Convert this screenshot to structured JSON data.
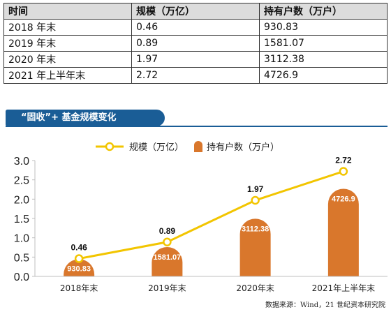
{
  "table": {
    "headers": [
      "时间",
      "规模（万亿）",
      "持有户数（万户）"
    ],
    "rows": [
      [
        "2018 年末",
        "0.46",
        "930.83"
      ],
      [
        "2019 年末",
        "0.89",
        "1581.07"
      ],
      [
        "2020 年末",
        "1.97",
        "3112.38"
      ],
      [
        "2021 年上半年末",
        "2.72",
        "4726.9"
      ]
    ]
  },
  "banner_title": "“固收”+ 基金规模变化",
  "source_note": "数据来源：Wind，21 世纪资本研究院",
  "chart_data": {
    "type": "bar+line",
    "categories": [
      "2018年末",
      "2019年末",
      "2020年末",
      "2021年上半年末"
    ],
    "line_series": {
      "name": "规模（万亿）",
      "values": [
        0.46,
        0.89,
        1.97,
        2.72
      ],
      "labels": [
        "0.46",
        "0.89",
        "1.97",
        "2.72"
      ],
      "color": "#f2c500"
    },
    "bar_series": {
      "name": "持有户数（万户）",
      "values": [
        930.83,
        1581.07,
        3112.38,
        4726.9
      ],
      "labels": [
        "930.83",
        "1581.07",
        "3112.38",
        "4726.9"
      ],
      "color": "#d9772c"
    },
    "y_axis": {
      "range": [
        0,
        3.0
      ],
      "ticks": [
        "0.0",
        "0.5",
        "1.0",
        "1.5",
        "2.0",
        "2.5",
        "3.0"
      ],
      "tick_values": [
        0,
        0.5,
        1.0,
        1.5,
        2.0,
        2.5,
        3.0
      ]
    },
    "bar_scale_max": 6250,
    "legend_position": "top-center",
    "grid": false
  }
}
